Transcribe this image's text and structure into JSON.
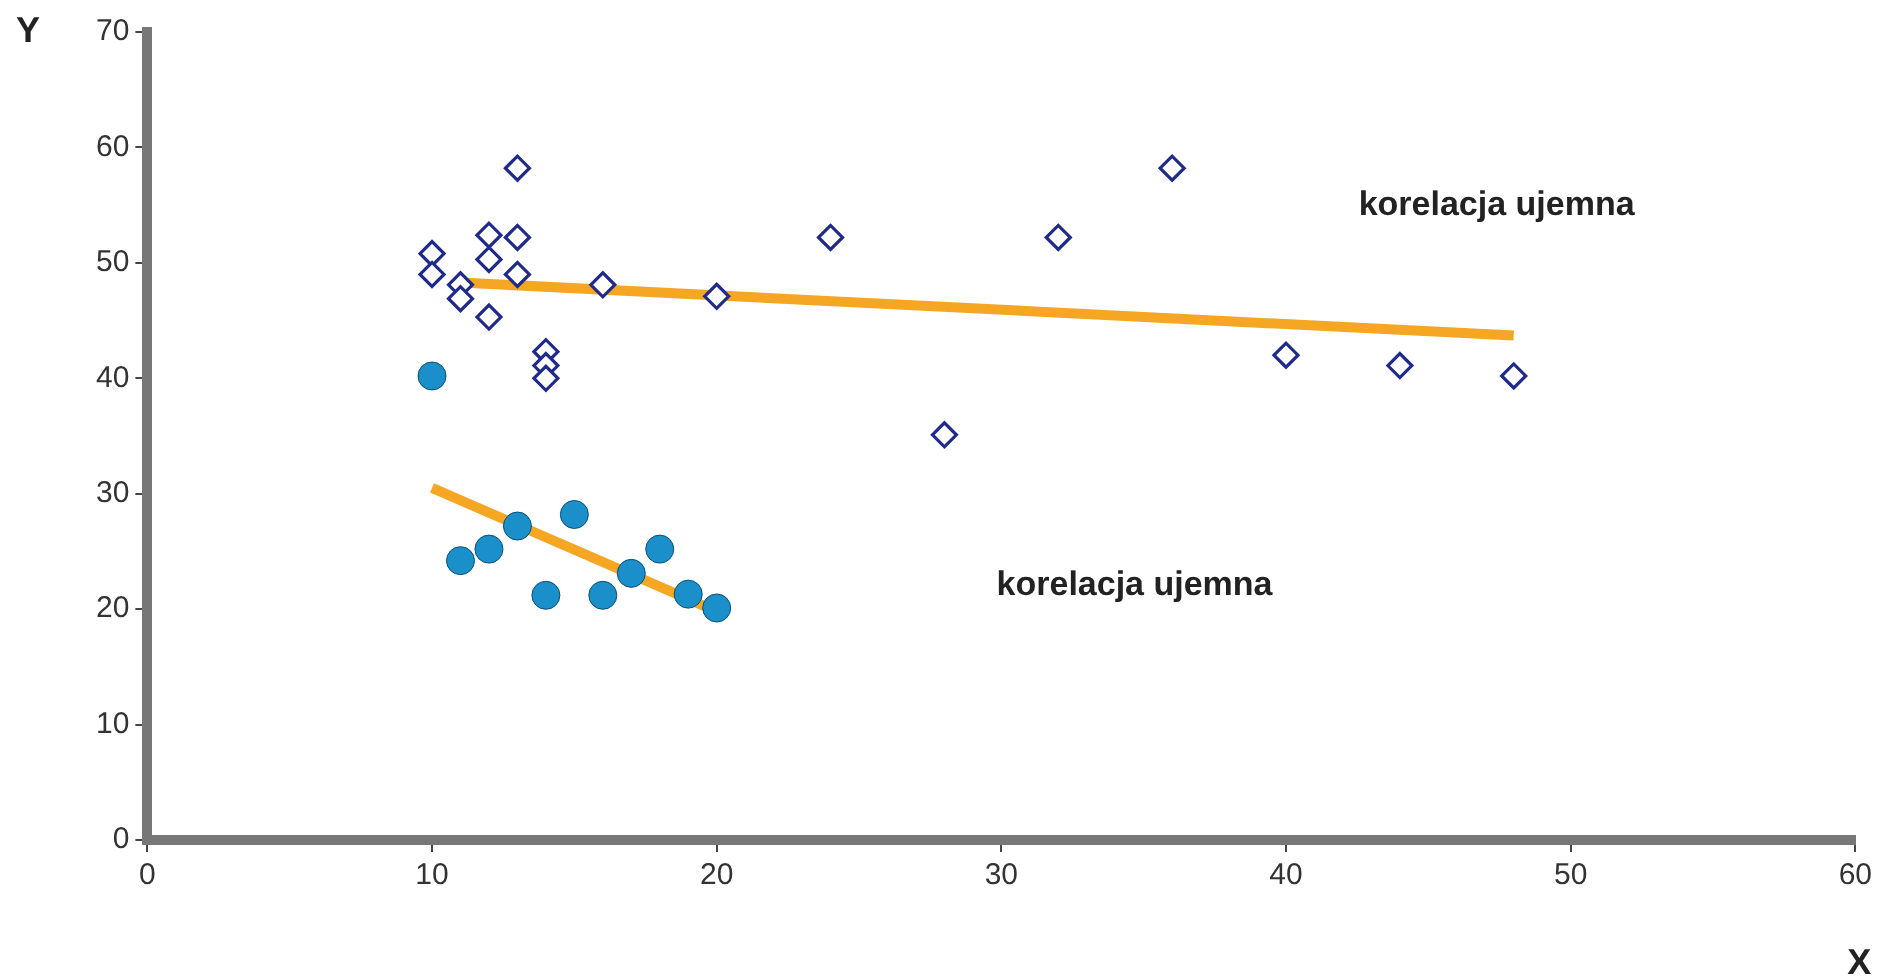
{
  "chart_data": {
    "type": "scatter",
    "xlabel": "X",
    "ylabel": "Y",
    "xlim": [
      0,
      60
    ],
    "xticks": [
      0,
      10,
      20,
      30,
      40,
      50,
      60
    ],
    "ylim": [
      0,
      70
    ],
    "yticks": [
      0,
      10,
      20,
      30,
      40,
      50,
      60,
      70
    ],
    "grid": false,
    "legend": false,
    "series": [
      {
        "type": "scatter",
        "marker": "diamond",
        "color": "#1f2a8a",
        "x": [
          10,
          10,
          11,
          11,
          12,
          12,
          12,
          13,
          13,
          13,
          14,
          14,
          14,
          16,
          20,
          24,
          28,
          32,
          36,
          40,
          44,
          48
        ],
        "values": [
          50.8,
          49,
          48.1,
          46.9,
          52.4,
          50.3,
          45.3,
          58.2,
          52.2,
          49,
          42.3,
          41.1,
          40,
          48.1,
          47.1,
          52.2,
          35.1,
          52.2,
          58.2,
          42,
          41.1,
          40.2
        ]
      },
      {
        "type": "scatter",
        "marker": "circle",
        "color": "#1a8fc9",
        "x": [
          10,
          11,
          12,
          13,
          14,
          15,
          16,
          17,
          18,
          19,
          20
        ],
        "values": [
          40.2,
          24.2,
          25.2,
          27.2,
          21.2,
          28.2,
          21.2,
          23.1,
          25.2,
          21.3,
          20.1
        ]
      },
      {
        "type": "line",
        "marker": "none",
        "color": "#f5a623",
        "x": [
          11,
          48
        ],
        "values": [
          48.3,
          43.7
        ]
      },
      {
        "type": "line",
        "marker": "none",
        "color": "#f5a623",
        "x": [
          10,
          20
        ],
        "values": [
          30.5,
          19.8
        ]
      }
    ],
    "annotations": [
      "korelacja ujemna",
      "korelacja ujemna"
    ]
  }
}
